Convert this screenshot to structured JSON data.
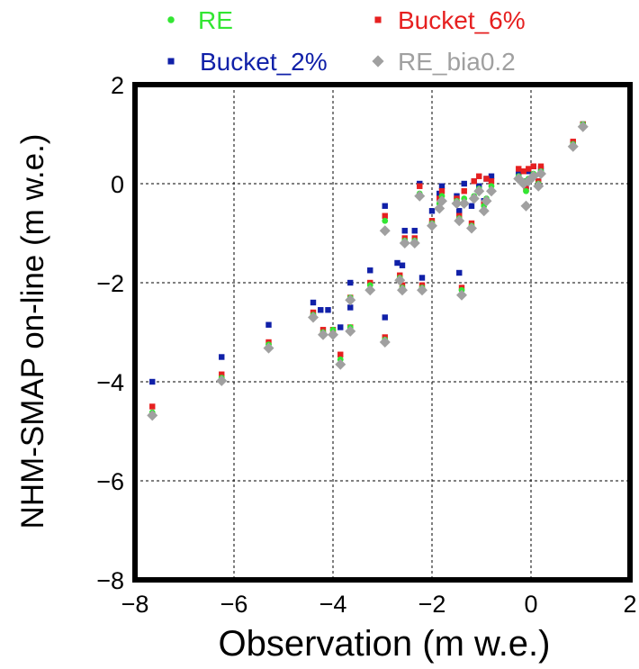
{
  "chart_data": {
    "type": "scatter",
    "title": "",
    "xlabel": "Observation (m w.e.)",
    "ylabel": "NHM-SMAP on-line (m w.e.)",
    "xlim": [
      -8,
      2
    ],
    "ylim": [
      -8,
      2
    ],
    "x_ticks": [
      -8,
      -6,
      -4,
      -2,
      0,
      2
    ],
    "y_ticks": [
      -8,
      -6,
      -4,
      -2,
      0,
      2
    ],
    "x_tick_labels": [
      "−8",
      "−6",
      "−4",
      "−2",
      "0",
      "2"
    ],
    "y_tick_labels": [
      "−8",
      "−6",
      "−4",
      "−2",
      "0",
      "2"
    ],
    "grid": true,
    "legend_position": "top",
    "series": [
      {
        "name": "RE",
        "color": "#33e633",
        "marker": "circle",
        "points": [
          [
            -7.65,
            -4.62
          ],
          [
            -6.25,
            -3.92
          ],
          [
            -5.3,
            -3.25
          ],
          [
            -4.4,
            -2.65
          ],
          [
            -4.2,
            -3.0
          ],
          [
            -4.0,
            -2.95
          ],
          [
            -3.85,
            -3.55
          ],
          [
            -3.65,
            -2.3
          ],
          [
            -3.65,
            -2.9
          ],
          [
            -3.25,
            -2.05
          ],
          [
            -2.95,
            -0.75
          ],
          [
            -2.95,
            -3.15
          ],
          [
            -2.65,
            -1.9
          ],
          [
            -2.6,
            -2.1
          ],
          [
            -2.55,
            -1.15
          ],
          [
            -2.35,
            -1.15
          ],
          [
            -2.25,
            -0.2
          ],
          [
            -2.2,
            -2.1
          ],
          [
            -2.0,
            -0.8
          ],
          [
            -1.85,
            -0.4
          ],
          [
            -1.8,
            -0.25
          ],
          [
            -1.5,
            -0.35
          ],
          [
            -1.45,
            -0.7
          ],
          [
            -1.4,
            -2.15
          ],
          [
            -1.35,
            -0.3
          ],
          [
            -1.2,
            -0.85
          ],
          [
            -1.15,
            -0.25
          ],
          [
            -1.05,
            -0.1
          ],
          [
            -0.95,
            -0.45
          ],
          [
            -0.9,
            -0.3
          ],
          [
            -0.8,
            -0.05
          ],
          [
            -0.25,
            0.15
          ],
          [
            -0.15,
            0.05
          ],
          [
            -0.1,
            -0.15
          ],
          [
            -0.05,
            0.1
          ],
          [
            0.05,
            0.2
          ],
          [
            0.15,
            0.0
          ],
          [
            0.2,
            0.25
          ],
          [
            0.85,
            0.8
          ],
          [
            1.05,
            1.2
          ]
        ]
      },
      {
        "name": "Bucket_6%",
        "color": "#e62020",
        "marker": "square",
        "points": [
          [
            -7.65,
            -4.5
          ],
          [
            -6.25,
            -3.85
          ],
          [
            -5.3,
            -3.2
          ],
          [
            -4.4,
            -2.6
          ],
          [
            -4.2,
            -2.95
          ],
          [
            -4.0,
            -2.95
          ],
          [
            -3.85,
            -3.45
          ],
          [
            -3.65,
            -2.3
          ],
          [
            -3.65,
            -2.9
          ],
          [
            -3.25,
            -2.0
          ],
          [
            -2.95,
            -0.65
          ],
          [
            -2.95,
            -3.1
          ],
          [
            -2.65,
            -1.85
          ],
          [
            -2.6,
            -2.05
          ],
          [
            -2.55,
            -1.1
          ],
          [
            -2.35,
            -1.1
          ],
          [
            -2.25,
            -0.05
          ],
          [
            -2.2,
            -2.05
          ],
          [
            -2.0,
            -0.75
          ],
          [
            -1.85,
            -0.3
          ],
          [
            -1.8,
            -0.15
          ],
          [
            -1.5,
            -0.3
          ],
          [
            -1.45,
            -0.65
          ],
          [
            -1.4,
            -2.1
          ],
          [
            -1.35,
            -0.15
          ],
          [
            -1.2,
            -0.8
          ],
          [
            -1.15,
            0.05
          ],
          [
            -1.05,
            0.15
          ],
          [
            -0.95,
            -0.4
          ],
          [
            -0.9,
            0.1
          ],
          [
            -0.8,
            0.05
          ],
          [
            -0.25,
            0.3
          ],
          [
            -0.15,
            0.25
          ],
          [
            -0.1,
            -0.1
          ],
          [
            -0.05,
            0.3
          ],
          [
            0.05,
            0.35
          ],
          [
            0.15,
            0.05
          ],
          [
            0.2,
            0.35
          ],
          [
            0.85,
            0.85
          ],
          [
            1.05,
            1.2
          ]
        ]
      },
      {
        "name": "Bucket_2%",
        "color": "#1020a8",
        "marker": "square",
        "points": [
          [
            -7.65,
            -4.0
          ],
          [
            -6.25,
            -3.5
          ],
          [
            -5.3,
            -2.85
          ],
          [
            -4.4,
            -2.4
          ],
          [
            -4.25,
            -2.55
          ],
          [
            -4.1,
            -2.55
          ],
          [
            -3.85,
            -2.9
          ],
          [
            -3.65,
            -2.0
          ],
          [
            -3.65,
            -2.5
          ],
          [
            -3.25,
            -1.75
          ],
          [
            -2.95,
            -0.45
          ],
          [
            -2.95,
            -2.7
          ],
          [
            -2.7,
            -1.6
          ],
          [
            -2.6,
            -1.65
          ],
          [
            -2.55,
            -0.95
          ],
          [
            -2.35,
            -0.95
          ],
          [
            -2.25,
            0.0
          ],
          [
            -2.2,
            -1.9
          ],
          [
            -2.0,
            -0.55
          ],
          [
            -1.85,
            -0.2
          ],
          [
            -1.8,
            -0.05
          ],
          [
            -1.5,
            -0.25
          ],
          [
            -1.45,
            -0.55
          ],
          [
            -1.45,
            -1.8
          ],
          [
            -1.35,
            0.0
          ],
          [
            -1.2,
            -0.45
          ],
          [
            -1.15,
            0.05
          ],
          [
            -1.05,
            -0.05
          ],
          [
            -0.95,
            -0.35
          ],
          [
            -0.9,
            0.1
          ],
          [
            -0.8,
            0.15
          ],
          [
            -0.25,
            0.2
          ],
          [
            -0.15,
            0.05
          ],
          [
            -0.1,
            -0.05
          ],
          [
            -0.05,
            0.25
          ],
          [
            0.05,
            0.35
          ],
          [
            0.15,
            0.05
          ],
          [
            0.2,
            0.3
          ],
          [
            0.85,
            0.8
          ],
          [
            1.05,
            1.2
          ]
        ]
      },
      {
        "name": "RE_bia0.2",
        "color": "#a0a0a0",
        "marker": "diamond",
        "points": [
          [
            -7.65,
            -4.68
          ],
          [
            -6.25,
            -3.98
          ],
          [
            -5.3,
            -3.32
          ],
          [
            -4.4,
            -2.7
          ],
          [
            -4.2,
            -3.05
          ],
          [
            -4.0,
            -3.05
          ],
          [
            -3.85,
            -3.65
          ],
          [
            -3.65,
            -2.35
          ],
          [
            -3.65,
            -2.98
          ],
          [
            -3.25,
            -2.15
          ],
          [
            -2.95,
            -0.95
          ],
          [
            -2.95,
            -3.2
          ],
          [
            -2.65,
            -1.95
          ],
          [
            -2.6,
            -2.15
          ],
          [
            -2.55,
            -1.2
          ],
          [
            -2.35,
            -1.2
          ],
          [
            -2.25,
            -0.25
          ],
          [
            -2.2,
            -2.15
          ],
          [
            -2.0,
            -0.85
          ],
          [
            -1.85,
            -0.5
          ],
          [
            -1.8,
            -0.35
          ],
          [
            -1.5,
            -0.4
          ],
          [
            -1.45,
            -0.75
          ],
          [
            -1.4,
            -2.25
          ],
          [
            -1.35,
            -0.4
          ],
          [
            -1.2,
            -0.9
          ],
          [
            -1.15,
            -0.3
          ],
          [
            -1.05,
            -0.15
          ],
          [
            -0.95,
            -0.55
          ],
          [
            -0.9,
            -0.35
          ],
          [
            -0.8,
            -0.15
          ],
          [
            -0.25,
            0.1
          ],
          [
            -0.15,
            0.0
          ],
          [
            -0.1,
            -0.45
          ],
          [
            -0.05,
            0.05
          ],
          [
            0.05,
            0.15
          ],
          [
            0.15,
            -0.05
          ],
          [
            0.2,
            0.2
          ],
          [
            0.85,
            0.75
          ],
          [
            1.05,
            1.15
          ]
        ]
      }
    ]
  }
}
